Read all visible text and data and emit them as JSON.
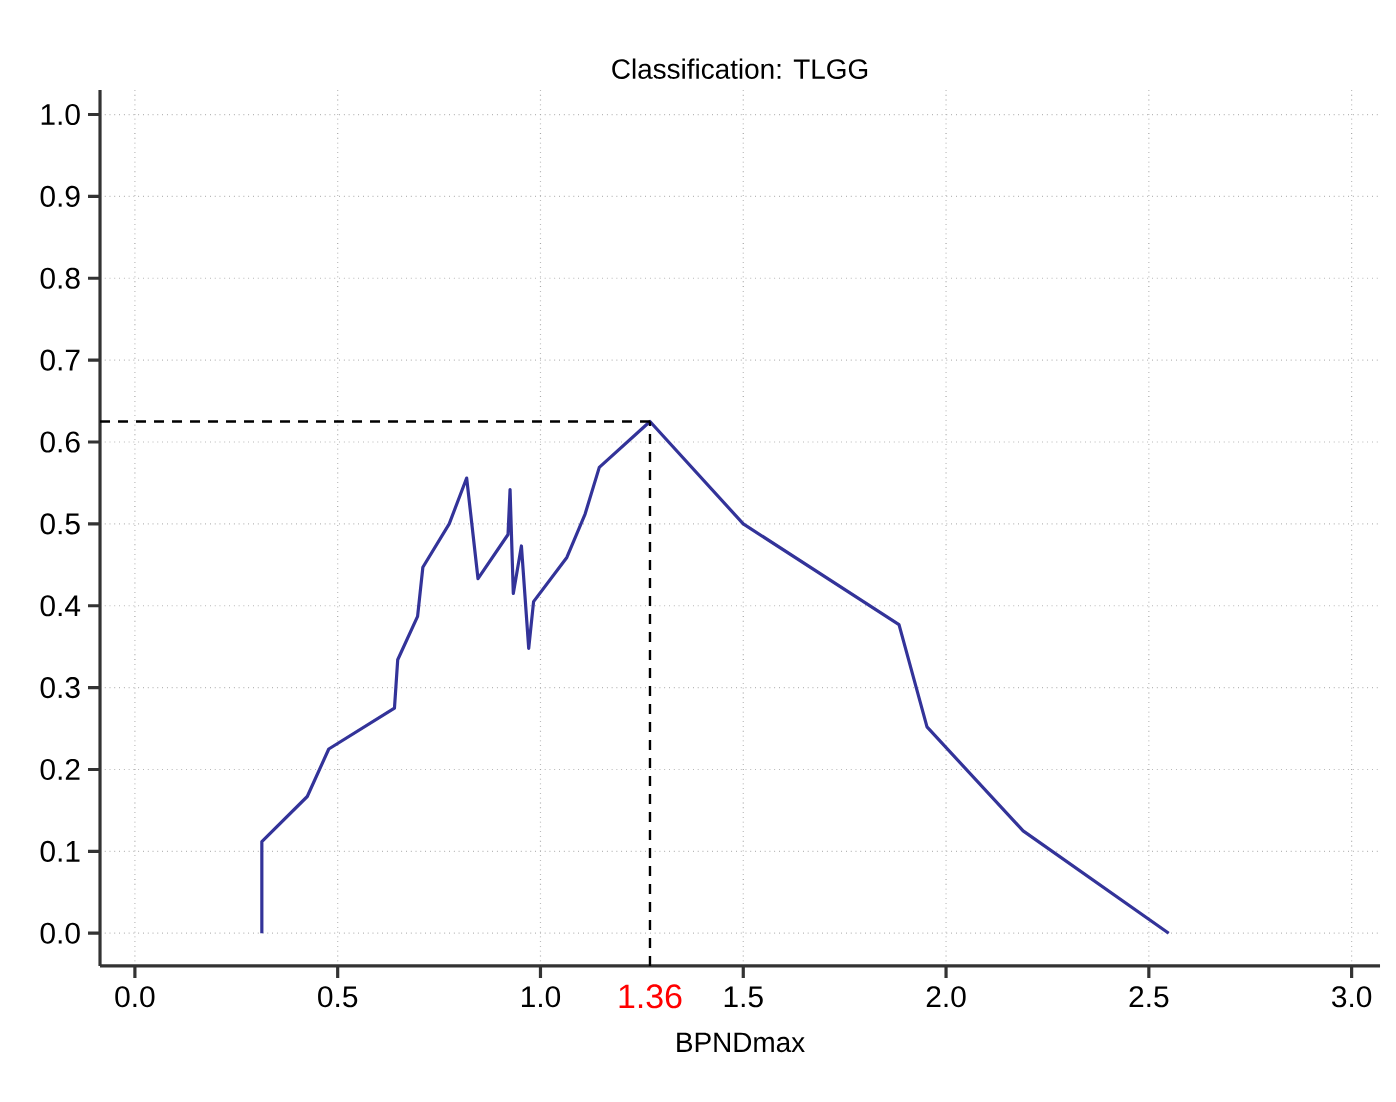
{
  "chart_data": {
    "type": "line",
    "title": "Classification: TLGG",
    "xlabel": "BPNDmax",
    "x": [
      0.313,
      0.313,
      0.425,
      0.478,
      0.64,
      0.648,
      0.697,
      0.71,
      0.775,
      0.818,
      0.846,
      0.92,
      0.925,
      0.933,
      0.953,
      0.971,
      0.983,
      1.065,
      1.11,
      1.145,
      1.27,
      1.5,
      1.884,
      1.953,
      2.19,
      2.549
    ],
    "series": [
      {
        "color": "#333399",
        "values": [
          0.0,
          0.112,
          0.167,
          0.225,
          0.275,
          0.334,
          0.387,
          0.447,
          0.5,
          0.556,
          0.433,
          0.487,
          0.542,
          0.415,
          0.473,
          0.348,
          0.405,
          0.459,
          0.512,
          0.569,
          0.625,
          0.5,
          0.377,
          0.252,
          0.125,
          0.0
        ]
      }
    ],
    "xlim": [
      -0.086,
      3.07
    ],
    "ylim": [
      -0.04,
      1.03
    ],
    "xticks": [
      {
        "value": 0,
        "label": "0.0"
      },
      0.5,
      {
        "value": 1,
        "label": "1.0"
      },
      1.5,
      {
        "value": 2,
        "label": "2.0"
      },
      2.5,
      {
        "value": 3,
        "label": "3.0"
      }
    ],
    "yticks": [
      {
        "value": 0,
        "label": "0.0"
      },
      0.1,
      0.2,
      0.3,
      0.4,
      0.5,
      0.6,
      0.7,
      0.8,
      0.9,
      {
        "value": 1,
        "label": "1.0"
      }
    ],
    "annotations": [
      "1.36"
    ],
    "grid": true,
    "line_style": "solid",
    "marker": "none",
    "ref_lines": [
      {
        "axis": "x",
        "value": 1.27,
        "color": "#000000",
        "line_style": "dashed"
      },
      {
        "axis": "y",
        "value": 0.625,
        "color": "#000000",
        "line_style": "dashed"
      }
    ]
  }
}
